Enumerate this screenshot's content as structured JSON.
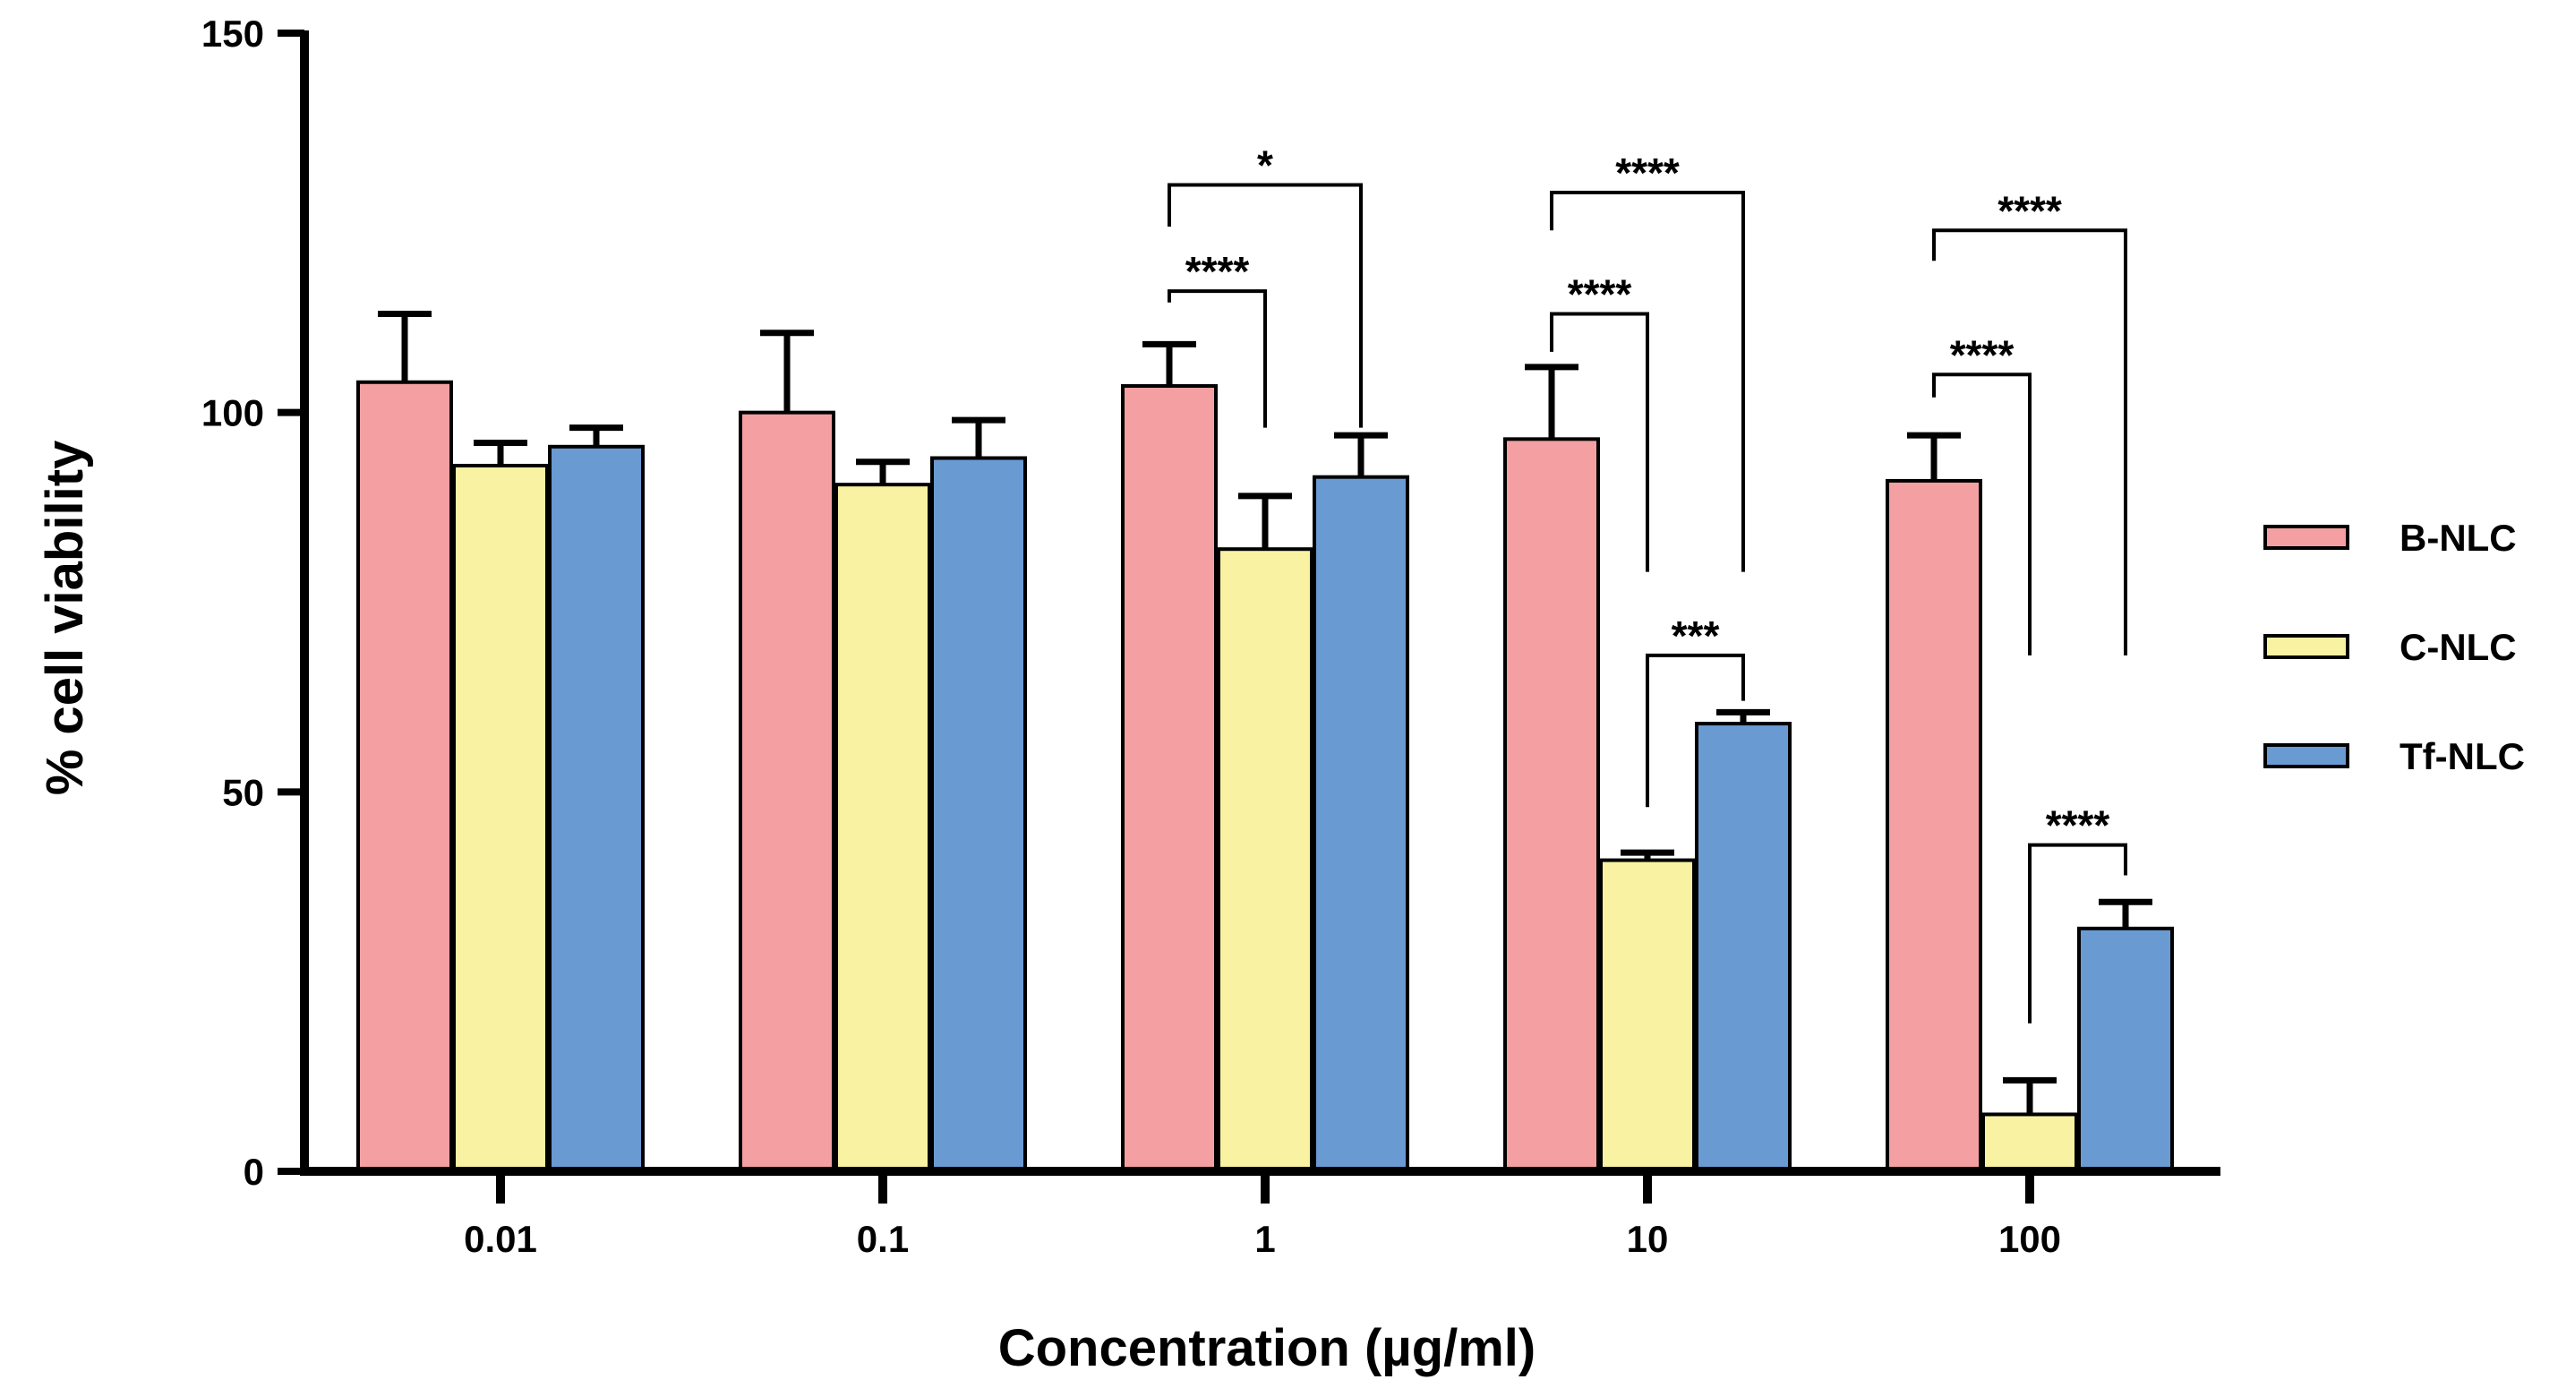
{
  "chart_data": {
    "type": "bar",
    "title": "",
    "xlabel": "Concentration (µg/ml)",
    "ylabel": "% cell viability",
    "ylim": [
      0,
      150
    ],
    "yticks": [
      "0",
      "50",
      "100",
      "150"
    ],
    "categories": [
      "0.01",
      "0.1",
      "1",
      "10",
      "100"
    ],
    "grid": false,
    "legend_position": "right",
    "series": [
      {
        "name": "B-NLC",
        "color": "#F4A0A2",
        "values": [
          104,
          100,
          103.5,
          96.5,
          91
        ],
        "errors": [
          9,
          10.5,
          5.5,
          9.5,
          6
        ]
      },
      {
        "name": "C-NLC",
        "color": "#F8F2A2",
        "values": [
          93,
          90.5,
          82,
          41,
          7.5
        ],
        "errors": [
          3,
          3,
          7,
          1,
          4.5
        ]
      },
      {
        "name": "Tf-NLC",
        "color": "#6A9AD2",
        "values": [
          95.5,
          94,
          91.5,
          59,
          32
        ],
        "errors": [
          2.5,
          5,
          5.5,
          1.5,
          3.5
        ]
      }
    ],
    "annotations": [
      {
        "category": "1",
        "from_series": "B-NLC",
        "to_series": "C-NLC",
        "label": "****",
        "bracket_y": 116,
        "left_end": 114.5,
        "right_end": 98
      },
      {
        "category": "1",
        "from_series": "B-NLC",
        "to_series": "Tf-NLC",
        "label": "*",
        "bracket_y": 130,
        "left_end": 124.5,
        "right_end": 98
      },
      {
        "category": "10",
        "from_series": "B-NLC",
        "to_series": "C-NLC",
        "label": "****",
        "bracket_y": 113,
        "left_end": 108,
        "right_end": 79
      },
      {
        "category": "10",
        "from_series": "B-NLC",
        "to_series": "Tf-NLC",
        "label": "****",
        "bracket_y": 129,
        "left_end": 124,
        "right_end": 79
      },
      {
        "category": "10",
        "from_series": "C-NLC",
        "to_series": "Tf-NLC",
        "label": "***",
        "bracket_y": 68,
        "left_end": 48,
        "right_end": 62
      },
      {
        "category": "100",
        "from_series": "B-NLC",
        "to_series": "C-NLC",
        "label": "****",
        "bracket_y": 105,
        "left_end": 102,
        "right_end": 68
      },
      {
        "category": "100",
        "from_series": "B-NLC",
        "to_series": "Tf-NLC",
        "label": "****",
        "bracket_y": 124,
        "left_end": 120,
        "right_end": 68
      },
      {
        "category": "100",
        "from_series": "C-NLC",
        "to_series": "Tf-NLC",
        "label": "****",
        "bracket_y": 43,
        "left_end": 19.5,
        "right_end": 39
      }
    ]
  }
}
